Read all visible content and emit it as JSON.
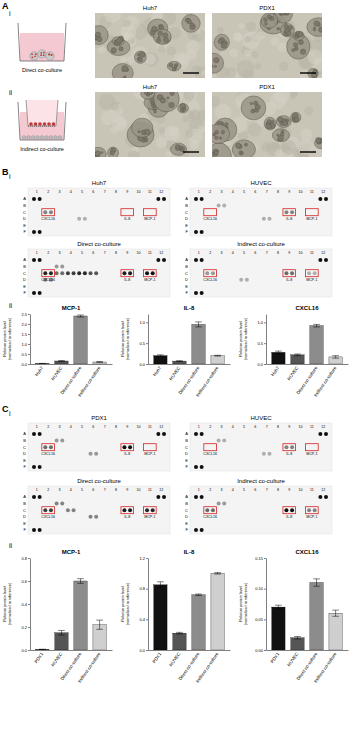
{
  "panel_a": {
    "letter": "A",
    "rows": [
      {
        "roman": "i",
        "schematic_label": "Direct co-culture",
        "image_titles": [
          "Huh7",
          "PDX1"
        ]
      },
      {
        "roman": "ii",
        "schematic_label": "Indirect co-culture",
        "image_titles": [
          "Huh7",
          "PDX1"
        ]
      }
    ]
  },
  "panel_b": {
    "letter": "B",
    "roman_arrays": "i",
    "roman_charts": "ii",
    "array_titles": [
      "Huh7",
      "HUVEC",
      "Direct co-culture",
      "Indirect co-culture"
    ]
  },
  "panel_c": {
    "letter": "C",
    "roman_arrays": "i",
    "roman_charts": "ii",
    "array_titles": [
      "PDX1",
      "HUVEC",
      "Direct co-culture",
      "Indirect co-culture"
    ]
  },
  "array_row_labels": [
    "A",
    "B",
    "C",
    "D",
    "E",
    "F"
  ],
  "array_col_labels": [
    1,
    2,
    3,
    4,
    5,
    6,
    7,
    8,
    9,
    10,
    11,
    12
  ],
  "array_highlights": [
    "CXCL16",
    "IL-8",
    "MCP-1"
  ],
  "chart_data": [
    {
      "type": "bar",
      "title": "MCP-1",
      "ylabel": "Relative protein level (normalised to reference)",
      "categories": [
        "Huh7",
        "HUVEC",
        "Direct co-culture",
        "Indirect co-culture"
      ],
      "values": [
        0.02,
        0.15,
        2.4,
        0.1
      ],
      "errors": [
        0.01,
        0.02,
        0.05,
        0.02
      ],
      "colors": [
        "#111111",
        "#555555",
        "#8c8c8c",
        "#cfcfcf"
      ],
      "ylim": [
        0,
        2.5
      ],
      "yticks": [
        {
          "value": 0,
          "label": "0.0"
        },
        {
          "value": 0.5,
          "label": "0.5"
        },
        {
          "value": 1,
          "label": "1.0"
        },
        {
          "value": 1.5,
          "label": "1.5"
        },
        {
          "value": 2,
          "label": "2.0"
        },
        {
          "value": 2.5,
          "label": "2.5"
        }
      ]
    },
    {
      "type": "bar",
      "title": "IL-8",
      "ylabel": "Relative protein level (normalised to reference)",
      "categories": [
        "Huh7",
        "HUVEC",
        "Direct co-culture",
        "Indirect co-culture"
      ],
      "values": [
        0.2,
        0.07,
        0.95,
        0.2
      ],
      "errors": [
        0.02,
        0.01,
        0.06,
        0.01
      ],
      "colors": [
        "#111111",
        "#555555",
        "#8c8c8c",
        "#cfcfcf"
      ],
      "ylim": [
        0,
        1.2
      ],
      "yticks": [
        {
          "value": 0,
          "label": "0.0"
        },
        {
          "value": 0.5,
          "label": "0.5"
        },
        {
          "value": 1,
          "label": "1.0"
        }
      ]
    },
    {
      "type": "bar",
      "title": "CXCL16",
      "ylabel": "Relative protein level (normalised to reference)",
      "categories": [
        "Huh7",
        "HUVEC",
        "Direct co-culture",
        "Indirect co-culture"
      ],
      "values": [
        0.28,
        0.22,
        0.92,
        0.17
      ],
      "errors": [
        0.03,
        0.02,
        0.03,
        0.03
      ],
      "colors": [
        "#111111",
        "#555555",
        "#8c8c8c",
        "#cfcfcf"
      ],
      "ylim": [
        0,
        1.2
      ],
      "yticks": [
        {
          "value": 0,
          "label": "0.0"
        },
        {
          "value": 0.5,
          "label": "0.5"
        },
        {
          "value": 1,
          "label": "1.0"
        }
      ]
    },
    {
      "type": "bar",
      "title": "MCP-1",
      "ylabel": "Relative protein level (normalised to reference)",
      "categories": [
        "PDX1",
        "HUVEC",
        "Direct co-culture",
        "Indirect co-culture"
      ],
      "values": [
        0.005,
        0.15,
        0.6,
        0.22
      ],
      "errors": [
        0.002,
        0.02,
        0.02,
        0.04
      ],
      "colors": [
        "#111111",
        "#555555",
        "#8c8c8c",
        "#cfcfcf"
      ],
      "ylim": [
        0,
        0.8
      ],
      "yticks": [
        {
          "value": 0,
          "label": "0.0"
        },
        {
          "value": 0.2,
          "label": "0.2"
        },
        {
          "value": 0.4,
          "label": "0.4"
        },
        {
          "value": 0.6,
          "label": "0.6"
        },
        {
          "value": 0.8,
          "label": "0.8"
        }
      ]
    },
    {
      "type": "bar",
      "title": "IL-8",
      "ylabel": "Relative protein level (normalised to reference)",
      "categories": [
        "PDX1",
        "HUVEC",
        "Direct co-culture",
        "Indirect co-culture"
      ],
      "values": [
        0.85,
        0.22,
        0.72,
        1.0
      ],
      "errors": [
        0.04,
        0.01,
        0.01,
        0.01
      ],
      "colors": [
        "#111111",
        "#555555",
        "#8c8c8c",
        "#cfcfcf"
      ],
      "ylim": [
        0,
        1.2
      ],
      "yticks": [
        {
          "value": 0,
          "label": "0.0"
        },
        {
          "value": 0.4,
          "label": "0.4"
        },
        {
          "value": 0.8,
          "label": "0.8"
        },
        {
          "value": 1.2,
          "label": "1.2"
        }
      ]
    },
    {
      "type": "bar",
      "title": "CXCL16",
      "ylabel": "Relative protein level (normalised to reference)",
      "categories": [
        "PDX1",
        "HUVEC",
        "Direct co-culture",
        "Indirect co-culture"
      ],
      "values": [
        0.07,
        0.02,
        0.11,
        0.06
      ],
      "errors": [
        0.003,
        0.002,
        0.006,
        0.005
      ],
      "colors": [
        "#111111",
        "#555555",
        "#8c8c8c",
        "#cfcfcf"
      ],
      "ylim": [
        0,
        0.15
      ],
      "yticks": [
        {
          "value": 0,
          "label": "0.00"
        },
        {
          "value": 0.05,
          "label": "0.05"
        },
        {
          "value": 0.1,
          "label": "0.10"
        },
        {
          "value": 0.15,
          "label": "0.15"
        }
      ]
    }
  ]
}
